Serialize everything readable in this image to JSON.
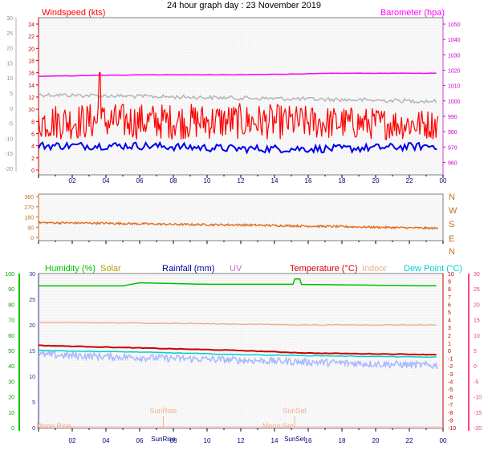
{
  "title": "24 hour graph day : 23 November 2019",
  "x_ticks": [
    "02",
    "04",
    "06",
    "08",
    "10",
    "12",
    "14",
    "16",
    "18",
    "20",
    "22",
    "00"
  ],
  "colors": {
    "wind": "#ff0000",
    "gust_blue": "#0000ee",
    "gray": "#b4b4b4",
    "baro": "#ff00ff",
    "winddir": "#e07020",
    "humidity": "#00c000",
    "solar": "#b0a000",
    "rainfall": "#000099",
    "uv": "#cc66cc",
    "temp": "#cc0000",
    "indoor": "#f0b090",
    "dewpoint": "#00d0d0",
    "lightblue": "#a8b8ff"
  },
  "chart_data": [
    {
      "type": "line",
      "labels": {
        "left": "Windspeed (kts)",
        "right": "Barometer (hpa)"
      },
      "left_axis_outer": [
        "30",
        "25",
        "20",
        "15",
        "10",
        "5",
        "0",
        "-5",
        "-10",
        "-15",
        "-20"
      ],
      "left_axis_inner": [
        "24",
        "22",
        "20",
        "18",
        "16",
        "14",
        "12",
        "10",
        "8",
        "6",
        "4",
        "2",
        "0"
      ],
      "right_axis": [
        "1050",
        "1040",
        "1030",
        "1020",
        "1010",
        "1000",
        "990",
        "980",
        "970",
        "960"
      ],
      "series": [
        {
          "role": "barometer",
          "axis": "hpa",
          "x": [
            0,
            6,
            12,
            18,
            23.7
          ],
          "y": [
            1016,
            1017,
            1017,
            1018,
            1018
          ]
        },
        {
          "role": "gust",
          "axis": "kts",
          "x": [
            0,
            3.5,
            3.6,
            3.7,
            12,
            23.7
          ],
          "y": [
            10,
            10,
            16,
            10,
            10,
            9
          ]
        },
        {
          "role": "average",
          "axis": "kts",
          "x": [
            0,
            6,
            12,
            18,
            23.7
          ],
          "y": [
            4,
            4,
            3.5,
            3.5,
            4
          ]
        }
      ]
    },
    {
      "type": "line",
      "left_axis": [
        "360",
        "270",
        "180",
        "90",
        "0"
      ],
      "right_axis": [
        "N",
        "W",
        "S",
        "E",
        "N"
      ],
      "series": [
        {
          "role": "wind_direction",
          "x": [
            0,
            4,
            8,
            12,
            16,
            20,
            23.7
          ],
          "y": [
            130,
            125,
            115,
            110,
            100,
            90,
            80
          ]
        }
      ]
    },
    {
      "type": "line",
      "labels": [
        {
          "text": "Humidity (%)",
          "color_key": "humidity"
        },
        {
          "text": "Solar",
          "color_key": "solar"
        },
        {
          "text": "Rainfall (mm)",
          "color_key": "rainfall"
        },
        {
          "text": "UV",
          "color_key": "uv"
        },
        {
          "text": "Temperature (°C)",
          "color_key": "temp"
        },
        {
          "text": "Indoor",
          "color_key": "indoor"
        },
        {
          "text": "Dew Point (°C)",
          "color_key": "dewpoint"
        }
      ],
      "axis_far_left": [
        "100",
        "90",
        "80",
        "70",
        "60",
        "50",
        "40",
        "30",
        "20",
        "10",
        "0"
      ],
      "axis_left": [
        "30",
        "25",
        "20",
        "15",
        "10",
        "5",
        "0"
      ],
      "axis_right": [
        "10",
        "9",
        "8",
        "7",
        "6",
        "5",
        "4",
        "3",
        "2",
        "1",
        "0",
        "-1",
        "-2",
        "-3",
        "-4",
        "-5",
        "-6",
        "-7",
        "-8",
        "-9",
        "-10"
      ],
      "axis_right_outer": [
        "30",
        "25",
        "20",
        "15",
        "10",
        "5",
        "0",
        "-5",
        "-10",
        "-15",
        "-20"
      ],
      "annotations": [
        {
          "text": "Moon Rise",
          "x": 0.9
        },
        {
          "text": "SunRise",
          "x": 7.4
        },
        {
          "text": "SunSet",
          "x": 15.2
        },
        {
          "text": "Moon Set",
          "x": 14.2
        }
      ],
      "bottom_labels": [
        {
          "text": "SunRise",
          "x": 7.4
        },
        {
          "text": "SunSet",
          "x": 15.2
        }
      ],
      "series": [
        {
          "role": "humidity",
          "x": [
            0,
            5,
            6,
            10,
            15,
            23.7
          ],
          "y": [
            92,
            92,
            94,
            93,
            93,
            92
          ]
        },
        {
          "role": "indoor",
          "x": [
            0,
            8,
            16,
            23.7
          ],
          "y": [
            20.5,
            20.3,
            20,
            20
          ]
        },
        {
          "role": "temperature",
          "x": [
            0,
            6,
            12,
            16,
            23.7
          ],
          "y": [
            16,
            15.5,
            15,
            14.5,
            14.2
          ]
        },
        {
          "role": "dew_point",
          "x": [
            0,
            6,
            12,
            16,
            23.7
          ],
          "y": [
            15,
            14.7,
            14.2,
            14,
            13.7
          ]
        }
      ]
    }
  ]
}
